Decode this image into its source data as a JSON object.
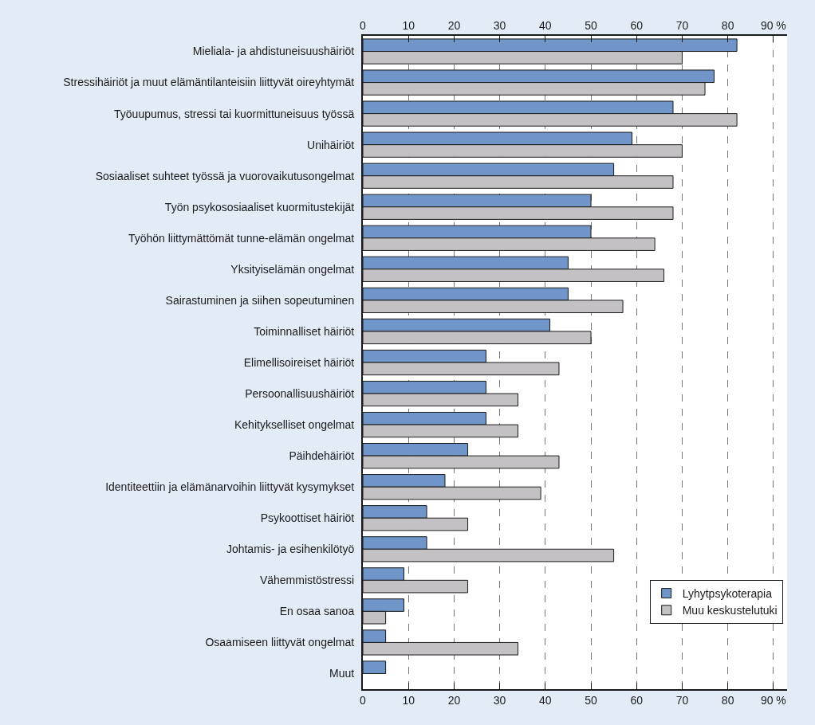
{
  "chart_data": {
    "type": "bar",
    "orientation": "horizontal",
    "categories": [
      "Mieliala- ja ahdistuneisuushäiriöt",
      "Stressihäiriöt ja muut elämäntilanteisiin liittyvät oireyhtymät",
      "Työuupumus, stressi tai kuormittuneisuus työssä",
      "Unihäiriöt",
      "Sosiaaliset suhteet työssä ja vuorovaikutusongelmat",
      "Työn psykososiaaliset kuormitustekijät",
      "Työhön liittymättömät tunne-elämän ongelmat",
      "Yksityiselämän ongelmat",
      "Sairastuminen ja siihen sopeutuminen",
      "Toiminnalliset häiriöt",
      "Elimellisoireiset häiriöt",
      "Persoonallisuushäiriöt",
      "Kehitykselliset ongelmat",
      "Päihdehäiriöt",
      "Identiteettiin ja elämänarvoihin liittyvät kysymykset",
      "Psykoottiset häiriöt",
      "Johtamis- ja esihenkilötyö",
      "Vähemmistöstressi",
      "En osaa sanoa",
      "Osaamiseen liittyvät ongelmat",
      "Muut"
    ],
    "series": [
      {
        "name": "Lyhytpsykoterapia",
        "color": "#6f95c9",
        "values": [
          82,
          77,
          68,
          59,
          55,
          50,
          50,
          45,
          45,
          41,
          27,
          27,
          27,
          23,
          18,
          14,
          14,
          9,
          9,
          5,
          5
        ]
      },
      {
        "name": "Muu keskustelutuki",
        "color": "#c3c1c4",
        "values": [
          70,
          75,
          82,
          70,
          68,
          68,
          64,
          66,
          57,
          50,
          43,
          34,
          34,
          43,
          39,
          23,
          55,
          23,
          5,
          34,
          null
        ]
      }
    ],
    "xlim": [
      0,
      93
    ],
    "xticks": [
      0,
      10,
      20,
      30,
      40,
      50,
      60,
      70,
      80,
      {
        "value": 90,
        "label": "90 %"
      }
    ],
    "x2lim": [
      0,
      93
    ],
    "x2ticks": [
      0,
      10,
      20,
      30,
      40,
      50,
      60,
      70,
      80,
      {
        "value": 90,
        "label": "90 %"
      }
    ],
    "grid": "x",
    "legend": "bottom right"
  }
}
